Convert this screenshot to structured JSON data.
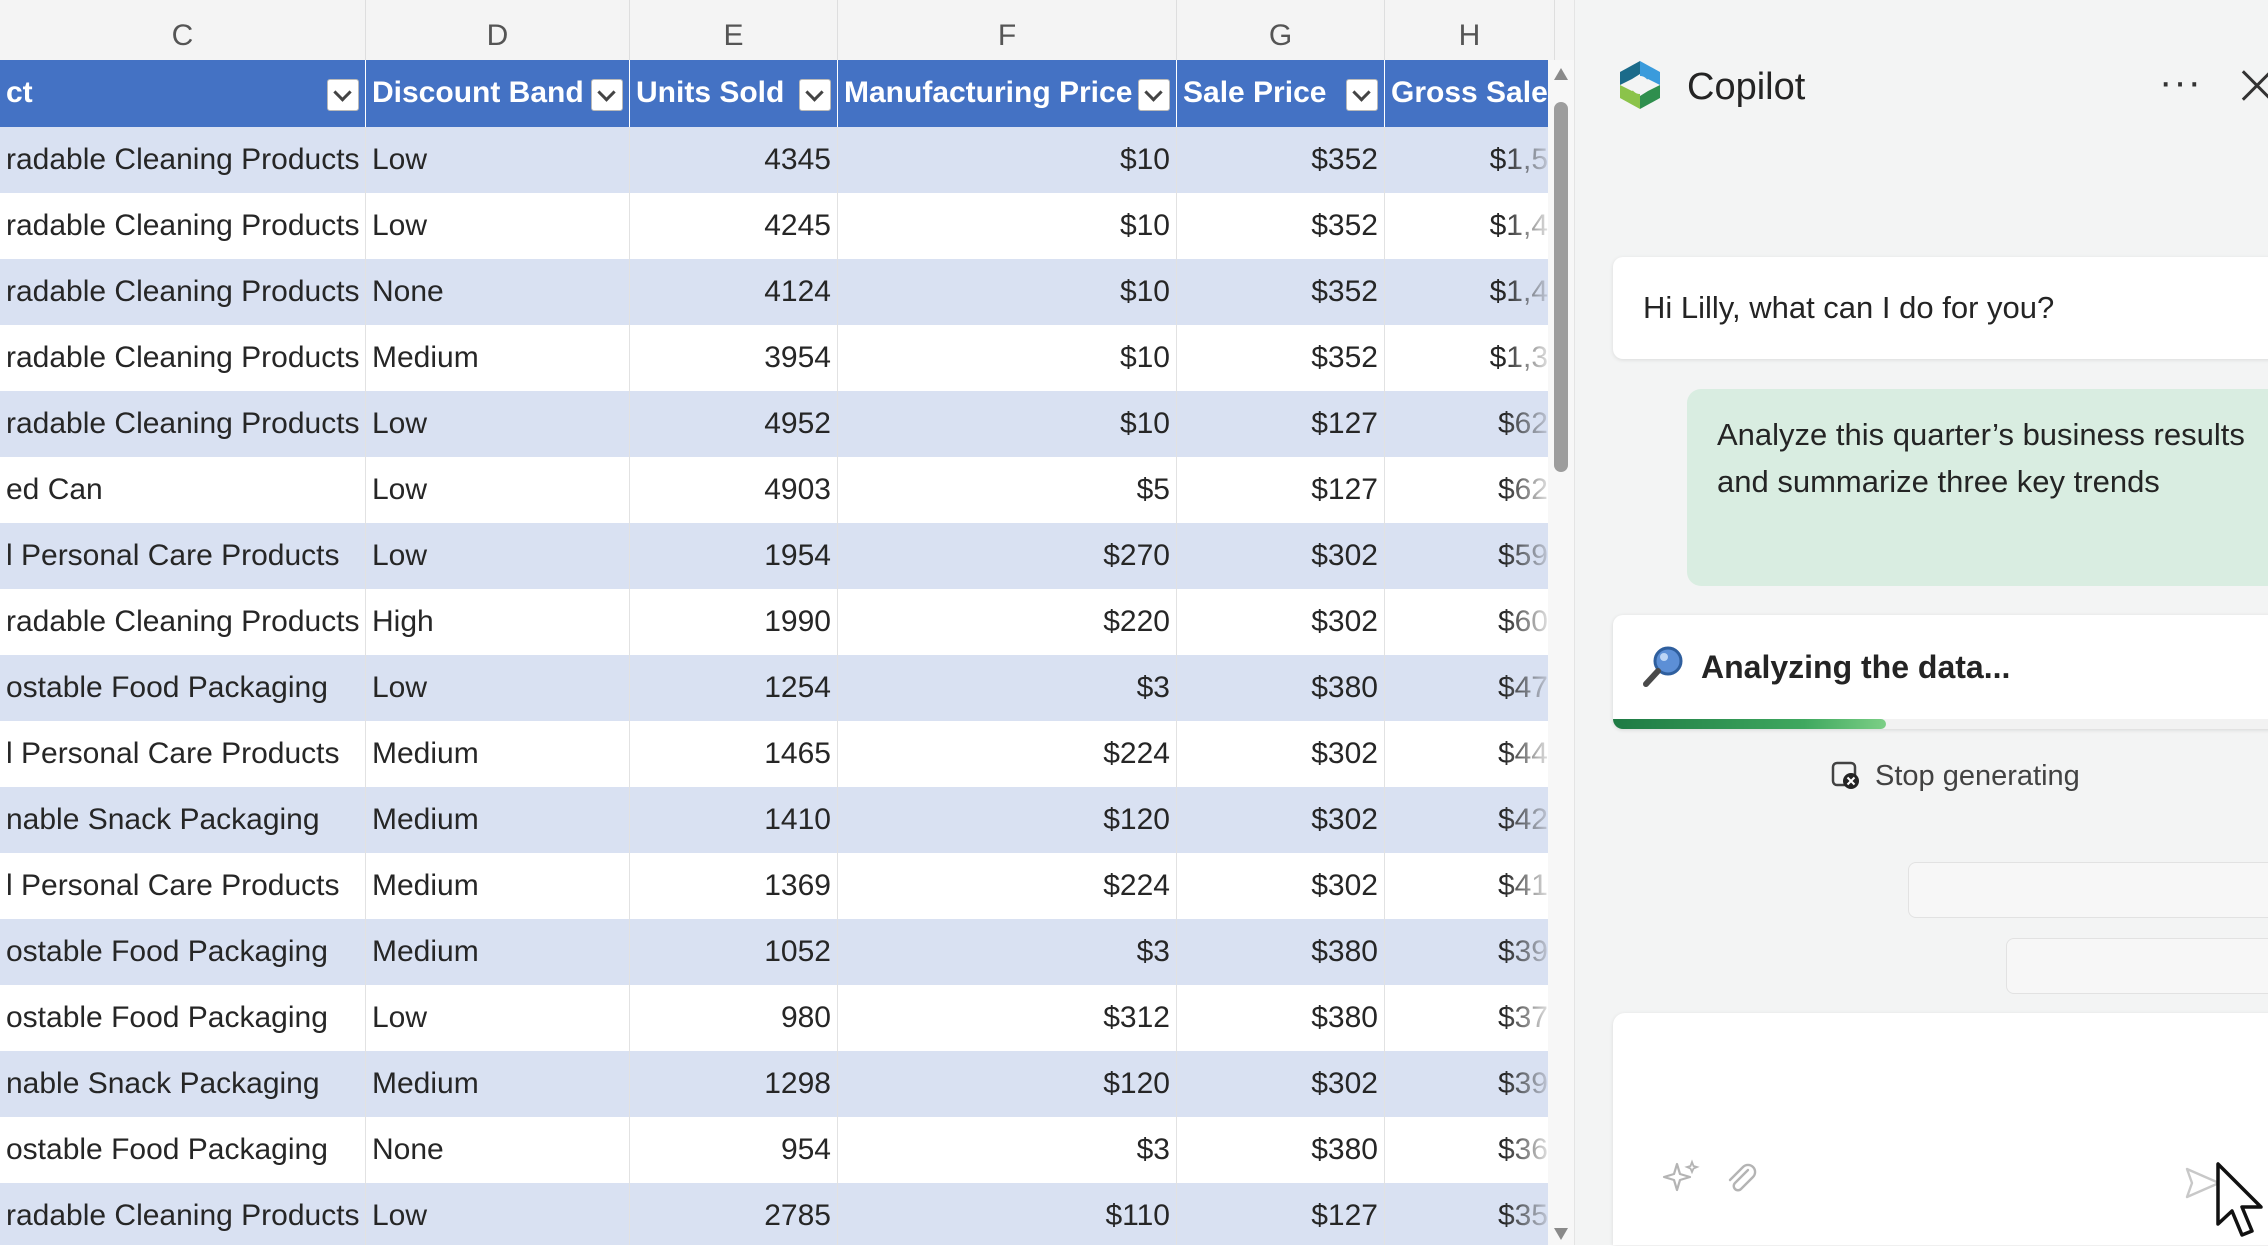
{
  "sheet": {
    "column_letters": [
      "C",
      "D",
      "E",
      "F",
      "G",
      "H"
    ],
    "headers": [
      "ct",
      "Discount Band",
      "Units Sold",
      "Manufacturing Price",
      "Sale Price",
      "Gross Sales"
    ],
    "rows": [
      [
        "radable Cleaning Products",
        "Low",
        "4345",
        "$10",
        "$352",
        "$1,5"
      ],
      [
        "radable Cleaning Products",
        "Low",
        "4245",
        "$10",
        "$352",
        "$1,4"
      ],
      [
        "radable Cleaning Products",
        "None",
        "4124",
        "$10",
        "$352",
        "$1,4"
      ],
      [
        "radable Cleaning Products",
        "Medium",
        "3954",
        "$10",
        "$352",
        "$1,3"
      ],
      [
        "radable Cleaning Products",
        "Low",
        "4952",
        "$10",
        "$127",
        "$62"
      ],
      [
        "ed Can",
        "Low",
        "4903",
        "$5",
        "$127",
        "$62"
      ],
      [
        "l Personal Care Products",
        "Low",
        "1954",
        "$270",
        "$302",
        "$59"
      ],
      [
        "radable Cleaning Products",
        "High",
        "1990",
        "$220",
        "$302",
        "$60"
      ],
      [
        "ostable Food Packaging",
        "Low",
        "1254",
        "$3",
        "$380",
        "$47"
      ],
      [
        "l Personal Care Products",
        "Medium",
        "1465",
        "$224",
        "$302",
        "$44"
      ],
      [
        "nable Snack Packaging",
        "Medium",
        "1410",
        "$120",
        "$302",
        "$42"
      ],
      [
        "l Personal Care Products",
        "Medium",
        "1369",
        "$224",
        "$302",
        "$41"
      ],
      [
        "ostable Food Packaging",
        "Medium",
        "1052",
        "$3",
        "$380",
        "$39"
      ],
      [
        "ostable Food Packaging",
        "Low",
        "980",
        "$312",
        "$380",
        "$37"
      ],
      [
        "nable Snack Packaging",
        "Medium",
        "1298",
        "$120",
        "$302",
        "$39"
      ],
      [
        "ostable Food Packaging",
        "None",
        "954",
        "$3",
        "$380",
        "$36"
      ],
      [
        "radable Cleaning Products",
        "Low",
        "2785",
        "$110",
        "$127",
        "$35"
      ]
    ],
    "colors": {
      "header": "#4472c4",
      "band": "#d9e1f2"
    }
  },
  "copilot": {
    "title": "Copilot",
    "more_icon": "more-horizontal-icon",
    "more_glyph": "···",
    "close_icon": "close-icon",
    "greeting": "Hi Lilly, what can I do for you?",
    "user_prompt": "Analyze this quarter’s business results and summarize three key trends",
    "status": "Analyzing the data...",
    "progress": 0.39,
    "stop_label": "Stop generating",
    "input_icons": [
      "sparkle-icon",
      "attach-icon",
      "send-icon"
    ],
    "accent": "#2e8b57"
  }
}
